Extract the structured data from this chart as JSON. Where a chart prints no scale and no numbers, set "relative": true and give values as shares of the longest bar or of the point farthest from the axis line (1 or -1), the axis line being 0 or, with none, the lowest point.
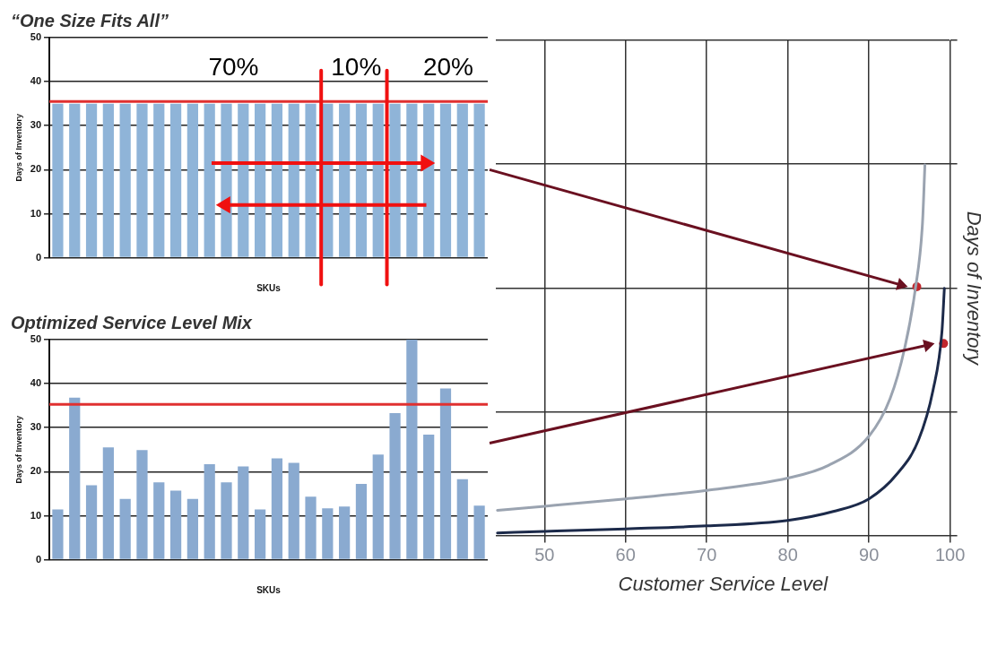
{
  "chart_data": [
    {
      "type": "bar",
      "title": "“One Size Fits All”",
      "xlabel": "SKUs",
      "ylabel": "Days of Inventory",
      "categories": [
        null,
        null,
        null,
        null,
        null,
        null,
        null,
        null,
        null,
        null,
        null,
        null,
        null,
        null,
        null,
        null,
        null,
        null,
        null,
        null,
        null,
        null,
        null,
        null,
        null,
        null
      ],
      "values": [
        35,
        35,
        35,
        35,
        35,
        35,
        35,
        35,
        35,
        35,
        35,
        35,
        35,
        35,
        35,
        35,
        35,
        35,
        35,
        35,
        35,
        35,
        35,
        35,
        35,
        35
      ],
      "color": "#8fb4d8",
      "ylim": [
        0,
        50
      ],
      "yticks": [
        0,
        10,
        20,
        30,
        40,
        50
      ],
      "grid": "y",
      "ref_lines": [
        {
          "axis": "y",
          "value": 35.5,
          "color": "#e03030"
        }
      ],
      "annotations": [
        "70%",
        "10%",
        "20%"
      ]
    },
    {
      "type": "bar",
      "title": "Optimized Service Level Mix",
      "xlabel": "SKUs",
      "ylabel": "Days of Inventory",
      "categories": [
        null,
        null,
        null,
        null,
        null,
        null,
        null,
        null,
        null,
        null,
        null,
        null,
        null,
        null,
        null,
        null,
        null,
        null,
        null,
        null,
        null,
        null,
        null,
        null,
        null,
        null
      ],
      "values": [
        11.4,
        36.8,
        16.9,
        25.5,
        13.8,
        24.9,
        17.6,
        15.7,
        13.8,
        21.7,
        17.6,
        21.2,
        11.4,
        23,
        22,
        14.3,
        11.7,
        12.1,
        17.2,
        23.9,
        33.3,
        50,
        28.4,
        38.9,
        18.3,
        12.3
      ],
      "color": "#8aaad0",
      "ylim": [
        0,
        50
      ],
      "yticks": [
        0,
        10,
        20,
        30,
        40,
        50
      ],
      "grid": "y",
      "ref_lines": [
        {
          "axis": "y",
          "value": 35.3,
          "color": "#e03030"
        }
      ]
    },
    {
      "type": "line",
      "xlabel": "Customer Service Level",
      "ylabel": "Days of Inventory",
      "relative": true,
      "xlim": [
        44,
        100
      ],
      "xticks": [
        50,
        60,
        70,
        80,
        90,
        100
      ],
      "grid": true,
      "series": [
        {
          "color": "#9aa3b0",
          "x": [
            44.2,
            50,
            60,
            70,
            80,
            85,
            90,
            92.6,
            94.4,
            95.7,
            96.6,
            96.9
          ],
          "values": [
            0.068,
            0.079,
            0.099,
            0.122,
            0.155,
            0.189,
            0.268,
            0.369,
            0.505,
            0.662,
            0.842,
            1
          ]
        },
        {
          "color": "#1c2a4a",
          "x": [
            44.2,
            50,
            60,
            70,
            80,
            85.6,
            90,
            93.5,
            96.1,
            97.9,
            99,
            99.3
          ],
          "values": [
            0.007,
            0.011,
            0.018,
            0.026,
            0.041,
            0.065,
            0.099,
            0.167,
            0.257,
            0.392,
            0.55,
            0.667
          ]
        },
        {
          "type": "scatter",
          "color": "#c0272d",
          "x": [
            95.9,
            99.2
          ],
          "values": [
            0.671,
            0.518
          ]
        }
      ]
    }
  ]
}
